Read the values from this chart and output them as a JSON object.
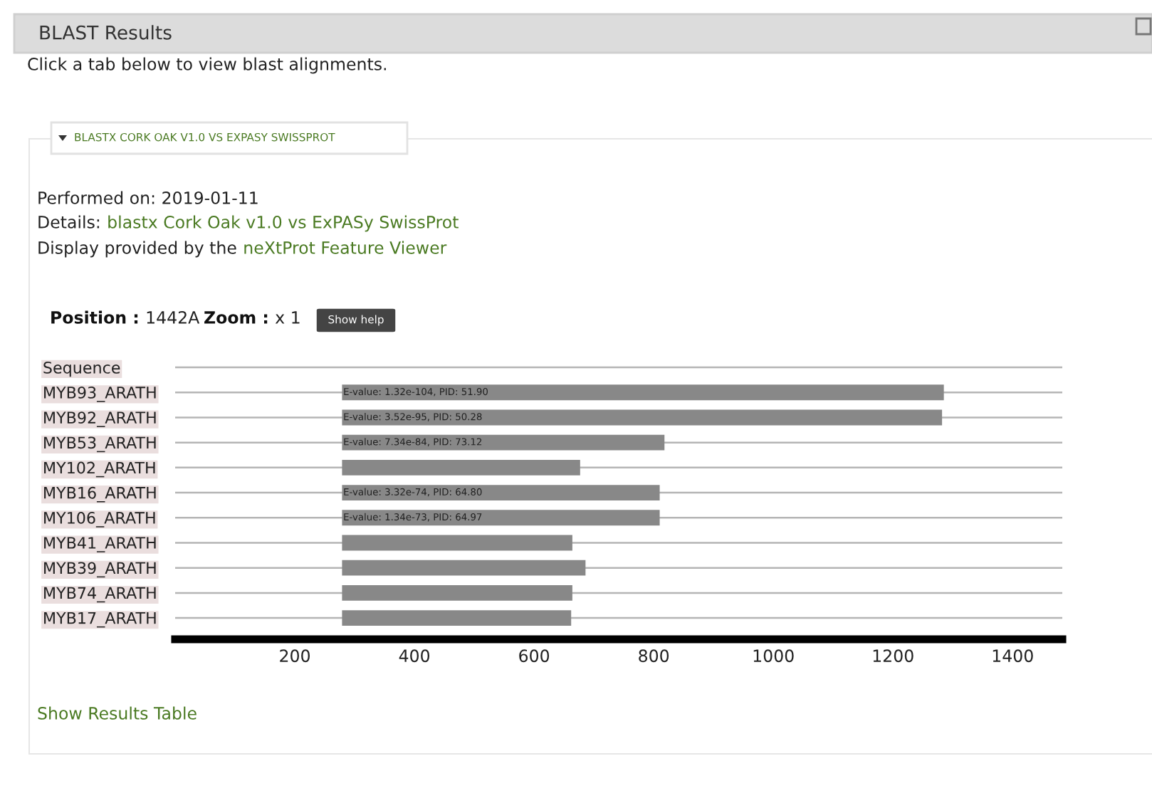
{
  "chart_data": {
    "type": "bar",
    "orientation": "horizontal",
    "title": "BLAST Results",
    "annotations": [
      "Click a tab below to view blast alignments.",
      "BLASTX CORK OAK V1.0 VS EXPASY SWISSPROT",
      "Performed on: 2019-01-11",
      "Details:",
      "blastx Cork Oak v1.0 vs ExPASy SwissProt",
      "Display provided by the",
      "neXtProt Feature Viewer",
      "Position :",
      "1442A",
      "Zoom :",
      "x 1",
      "Show help",
      "Show Results Table"
    ],
    "categories": [
      "Sequence",
      "MYB93_ARATH",
      "MYB92_ARATH",
      "MYB53_ARATH",
      "MY102_ARATH",
      "MYB16_ARATH",
      "MY106_ARATH",
      "MYB41_ARATH",
      "MYB39_ARATH",
      "MYB74_ARATH",
      "MYB17_ARATH"
    ],
    "base": [
      null,
      279,
      279,
      279,
      279,
      279,
      279,
      279,
      279,
      279,
      279
    ],
    "values": [
      null,
      1006,
      1003,
      539,
      398,
      531,
      531,
      385,
      407,
      385,
      383
    ],
    "value_labels": [
      null,
      "E-value: 1.32e-104, PID: 51.90",
      "E-value: 3.52e-95, PID: 50.28",
      "E-value: 7.34e-84, PID: 73.12",
      null,
      "E-value: 3.32e-74, PID: 64.80",
      "E-value: 1.34e-73, PID: 64.97",
      null,
      null,
      null,
      null
    ],
    "color": "#888888",
    "xlim": [
      0,
      1483
    ],
    "xticks": [
      200,
      400,
      600,
      800,
      1000,
      1200,
      1400
    ],
    "grid": "y",
    "legend": false
  }
}
